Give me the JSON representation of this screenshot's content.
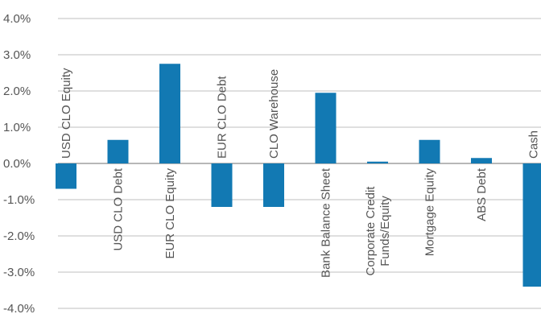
{
  "chart_data": {
    "type": "bar",
    "title": "",
    "xlabel": "",
    "ylabel": "",
    "categories": [
      "USD CLO Equity",
      "USD CLO Debt",
      "EUR CLO Equity",
      "EUR CLO Debt",
      "CLO Warehouse",
      "Bank Balance Sheet",
      "Corporate Credit Funds/Equity",
      "Mortgage Equity",
      "ABS Debt",
      "Cash"
    ],
    "category_label_lines": [
      [
        "USD CLO Equity"
      ],
      [
        "USD CLO Debt"
      ],
      [
        "EUR CLO Equity"
      ],
      [
        "EUR CLO Debt"
      ],
      [
        "CLO Warehouse"
      ],
      [
        "Bank Balance Sheet"
      ],
      [
        "Corporate Credit",
        "Funds/Equity"
      ],
      [
        "Mortgage Equity"
      ],
      [
        "ABS Debt"
      ],
      [
        "Cash"
      ]
    ],
    "values": [
      -0.7,
      0.65,
      2.75,
      -1.2,
      -1.2,
      1.95,
      0.05,
      0.65,
      0.15,
      -3.4
    ],
    "ylim": [
      -4.0,
      4.0
    ],
    "yticks": [
      4.0,
      3.0,
      2.0,
      1.0,
      0.0,
      -1.0,
      -2.0,
      -3.0,
      -4.0
    ],
    "ytick_labels": [
      "4.0%",
      "3.0%",
      "2.0%",
      "1.0%",
      "0.0%",
      "-1.0%",
      "-2.0%",
      "-3.0%",
      "-4.0%"
    ],
    "grid": true,
    "legend": "none",
    "bar_color": "#1279b3"
  }
}
